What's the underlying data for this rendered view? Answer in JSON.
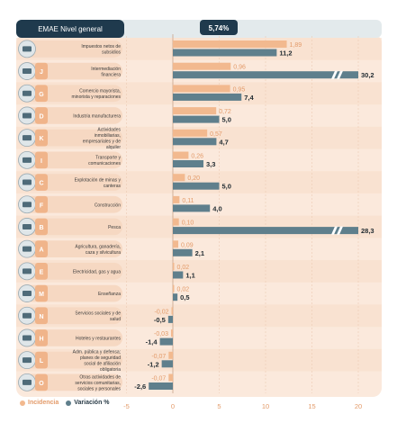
{
  "header": {
    "title": "EMAE Nivel general",
    "value": "5,74%"
  },
  "legend": {
    "incidence_label": "Incidencia",
    "variation_label": "Variación %"
  },
  "colors": {
    "incidence": "#f2b98f",
    "variation": "#5f7f8c",
    "header_bg": "#1f3a4d",
    "panel_bg": "#fbe9dc",
    "row_alt": "#f7dcc8",
    "badge": "#f0b48a",
    "negative_text": "#e39b6a"
  },
  "chart_data": {
    "type": "bar",
    "title": "EMAE Nivel general",
    "headline_value": "5,74%",
    "xlim": [
      -5,
      22
    ],
    "xticks": [
      "-5",
      "0",
      "5",
      "10",
      "15",
      "20"
    ],
    "series": [
      {
        "name": "Incidencia",
        "values": [
          1.89,
          0.96,
          0.95,
          0.72,
          0.57,
          0.26,
          0.2,
          0.11,
          0.1,
          0.09,
          0.02,
          0.02,
          -0.02,
          -0.03,
          -0.07,
          -0.07
        ]
      },
      {
        "name": "Variación %",
        "values": [
          11.2,
          30.2,
          7.4,
          5.0,
          4.7,
          3.3,
          5.0,
          4.0,
          28.3,
          2.1,
          1.1,
          0.5,
          -0.5,
          -1.4,
          -1.2,
          -2.6
        ]
      }
    ],
    "rows": [
      {
        "letter": "",
        "label": "Impuestos netos de subsidios",
        "incidence": 1.89,
        "incidence_label": "1,89",
        "variation": 11.2,
        "variation_label": "11,2",
        "broken": false
      },
      {
        "letter": "J",
        "label": "Intermediación financiera",
        "incidence": 0.96,
        "incidence_label": "0,96",
        "variation": 30.2,
        "variation_label": "30,2",
        "broken": true
      },
      {
        "letter": "G",
        "label": "Comercio mayorista, minorista y reparaciones",
        "incidence": 0.95,
        "incidence_label": "0,95",
        "variation": 7.4,
        "variation_label": "7,4",
        "broken": false
      },
      {
        "letter": "D",
        "label": "Industria manufacturera",
        "incidence": 0.72,
        "incidence_label": "0,72",
        "variation": 5.0,
        "variation_label": "5,0",
        "broken": false
      },
      {
        "letter": "K",
        "label": "Actividades inmobiliarias, empresariales y de alquiler",
        "incidence": 0.57,
        "incidence_label": "0,57",
        "variation": 4.7,
        "variation_label": "4,7",
        "broken": false
      },
      {
        "letter": "I",
        "label": "Transporte y comunicaciones",
        "incidence": 0.26,
        "incidence_label": "0,26",
        "variation": 3.3,
        "variation_label": "3,3",
        "broken": false
      },
      {
        "letter": "C",
        "label": "Explotación de minas y canteras",
        "incidence": 0.2,
        "incidence_label": "0,20",
        "variation": 5.0,
        "variation_label": "5,0",
        "broken": false
      },
      {
        "letter": "F",
        "label": "Construcción",
        "incidence": 0.11,
        "incidence_label": "0,11",
        "variation": 4.0,
        "variation_label": "4,0",
        "broken": false
      },
      {
        "letter": "B",
        "label": "Pesca",
        "incidence": 0.1,
        "incidence_label": "0,10",
        "variation": 28.3,
        "variation_label": "28,3",
        "broken": true
      },
      {
        "letter": "A",
        "label": "Agricultura, ganadería, caza y silvicultura",
        "incidence": 0.09,
        "incidence_label": "0,09",
        "variation": 2.1,
        "variation_label": "2,1",
        "broken": false
      },
      {
        "letter": "E",
        "label": "Electricidad, gas y agua",
        "incidence": 0.02,
        "incidence_label": "0,02",
        "variation": 1.1,
        "variation_label": "1,1",
        "broken": false
      },
      {
        "letter": "M",
        "label": "Enseñanza",
        "incidence": 0.02,
        "incidence_label": "0,02",
        "variation": 0.5,
        "variation_label": "0,5",
        "broken": false
      },
      {
        "letter": "N",
        "label": "Servicios sociales y de salud",
        "incidence": -0.02,
        "incidence_label": "-0,02",
        "variation": -0.5,
        "variation_label": "-0,5",
        "broken": false
      },
      {
        "letter": "H",
        "label": "Hoteles y restaurantes",
        "incidence": -0.03,
        "incidence_label": "-0,03",
        "variation": -1.4,
        "variation_label": "-1,4",
        "broken": false
      },
      {
        "letter": "L",
        "label": "Adm. pública y defensa; planes de seguridad social de afiliación obligatoria",
        "incidence": -0.07,
        "incidence_label": "-0,07",
        "variation": -1.2,
        "variation_label": "-1,2",
        "broken": false
      },
      {
        "letter": "O",
        "label": "Otras actividades de servicios comunitarias, sociales y personales",
        "incidence": -0.07,
        "incidence_label": "-0,07",
        "variation": -2.6,
        "variation_label": "-2,6",
        "broken": false
      }
    ]
  }
}
